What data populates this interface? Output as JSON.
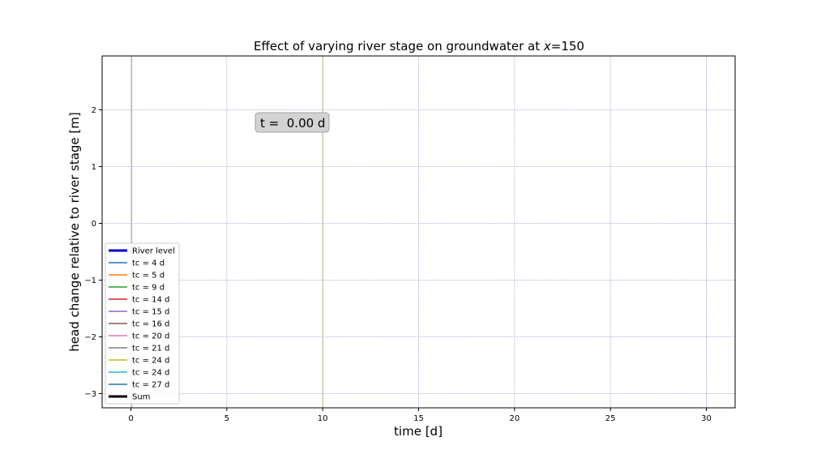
{
  "chart_data": {
    "type": "line",
    "title": "Effect of varying river stage on groundwater at x=150",
    "title_parts": {
      "prefix": "Effect of varying river stage on groundwater at ",
      "var": "x",
      "suffix": "=150"
    },
    "xlabel": "time [d]",
    "ylabel": "head change relative to river stage [m]",
    "xlim": [
      -1.5,
      31.5
    ],
    "ylim": [
      -3.25,
      2.95
    ],
    "xticks": [
      0,
      5,
      10,
      15,
      20,
      25,
      30
    ],
    "xtick_labels": [
      "0",
      "5",
      "10",
      "15",
      "20",
      "25",
      "30"
    ],
    "yticks": [
      -3,
      -2,
      -1,
      0,
      1,
      2
    ],
    "ytick_labels": [
      "−3",
      "−2",
      "−1",
      "0",
      "1",
      "2"
    ],
    "grid": true,
    "grid_color": "#9999cc",
    "legend_position": "lower-left",
    "time_annotation": "t =  0.00 d",
    "vertical_markers": [
      {
        "x": 0.05,
        "color": "#b5b58a"
      },
      {
        "x": 10.0,
        "color": "#b5b58a"
      }
    ],
    "series": [
      {
        "name": "River level",
        "color": "#0000cc",
        "width": 3,
        "values": []
      },
      {
        "name": "tc = 4 d",
        "color": "#1f77b4",
        "width": 1.5,
        "values": []
      },
      {
        "name": "tc = 5 d",
        "color": "#ff7f0e",
        "width": 1.5,
        "values": []
      },
      {
        "name": "tc = 9 d",
        "color": "#2ca02c",
        "width": 1.5,
        "values": []
      },
      {
        "name": "tc = 14 d",
        "color": "#d62728",
        "width": 1.5,
        "values": []
      },
      {
        "name": "tc = 15 d",
        "color": "#9467bd",
        "width": 1.5,
        "values": []
      },
      {
        "name": "tc = 16 d",
        "color": "#8c564b",
        "width": 1.5,
        "values": []
      },
      {
        "name": "tc = 20 d",
        "color": "#e377c2",
        "width": 1.5,
        "values": []
      },
      {
        "name": "tc = 21 d",
        "color": "#7f7f7f",
        "width": 1.5,
        "values": []
      },
      {
        "name": "tc = 24 d",
        "color": "#bcbd22",
        "width": 1.5,
        "values": []
      },
      {
        "name": "tc = 24 d",
        "color": "#17becf",
        "width": 1.5,
        "values": []
      },
      {
        "name": "tc = 27 d",
        "color": "#1f77b4",
        "width": 1.5,
        "values": []
      },
      {
        "name": "Sum",
        "color": "#000000",
        "width": 3,
        "values": []
      }
    ]
  }
}
